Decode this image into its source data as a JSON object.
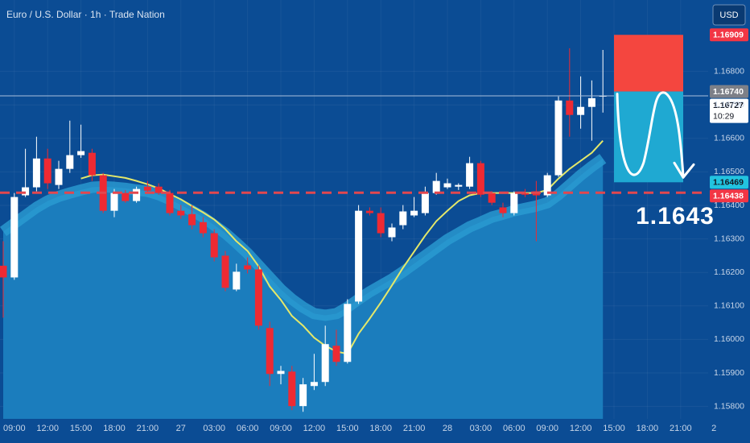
{
  "chart_data": {
    "type": "candlestick",
    "title": "Euro / U.S. Dollar · 1h · Trade Nation",
    "currency": "USD",
    "categories": [
      null,
      "09:00",
      null,
      null,
      "12:00",
      null,
      null,
      "15:00",
      null,
      null,
      "18:00",
      null,
      null,
      "21:00",
      null,
      null,
      "27",
      null,
      null,
      "03:00",
      null,
      null,
      "06:00",
      null,
      null,
      "09:00",
      null,
      null,
      "12:00",
      null,
      null,
      "15:00",
      null,
      null,
      "18:00",
      null,
      null,
      "21:00",
      null,
      null,
      "28",
      null,
      null,
      "03:00",
      null,
      null,
      "06:00",
      null,
      null,
      "09:00",
      null,
      null,
      "12:00",
      null,
      null,
      "15:00",
      null,
      null,
      "18:00",
      null,
      null,
      "21:00",
      null,
      null,
      "2"
    ],
    "open": [
      1.1622,
      1.16185,
      1.1643,
      1.16454,
      1.1654,
      1.16461,
      1.16509,
      1.1655,
      1.16557,
      1.1649,
      1.16384,
      1.16437,
      1.16413,
      1.16456,
      1.16456,
      1.16437,
      1.16384,
      1.16374,
      1.1635,
      1.16317,
      1.1625,
      1.16149,
      1.16221,
      1.16209,
      1.16034,
      1.15897,
      1.15904,
      1.15801,
      1.15861,
      1.15873,
      1.15981,
      1.15933,
      1.16113,
      1.16384,
      1.16377,
      1.16305,
      1.16341,
      1.1637,
      1.16377,
      1.16437,
      1.16454,
      1.16456,
      1.16456,
      1.16526,
      1.16437,
      1.16394,
      1.16377,
      1.16437,
      1.16442,
      1.1643,
      1.1649,
      1.16713,
      1.1667,
      1.16694,
      1.16725,
      null,
      null,
      null,
      null,
      null,
      null,
      null,
      null,
      null,
      null
    ],
    "high": [
      1.16293,
      1.16437,
      1.16569,
      1.16605,
      1.16569,
      1.16533,
      1.16653,
      1.16641,
      1.16569,
      1.16497,
      1.16449,
      1.16446,
      1.16456,
      1.16473,
      1.16466,
      1.16446,
      1.16401,
      1.16401,
      1.16365,
      1.16329,
      1.16264,
      1.16226,
      1.16245,
      1.16221,
      1.16053,
      1.15921,
      1.15921,
      1.15885,
      1.15957,
      1.16041,
      1.16029,
      1.1612,
      1.16401,
      1.16394,
      1.16394,
      1.16346,
      1.16401,
      1.16425,
      1.16456,
      1.16497,
      1.1648,
      1.16466,
      1.16545,
      1.16533,
      1.16442,
      1.16408,
      1.16442,
      1.16449,
      1.16473,
      1.16497,
      1.16725,
      1.16869,
      1.16785,
      1.16773,
      1.16864,
      null,
      null,
      null,
      null,
      null,
      null,
      null,
      null,
      null,
      null
    ],
    "low": [
      1.16065,
      1.16178,
      1.16425,
      1.16442,
      1.16449,
      1.16449,
      1.16497,
      1.16542,
      1.16473,
      1.16377,
      1.16365,
      1.16408,
      1.16408,
      1.16437,
      1.16432,
      1.1637,
      1.1636,
      1.16329,
      1.16305,
      1.16233,
      1.16144,
      1.16144,
      1.16197,
      1.16029,
      1.15861,
      1.15866,
      1.15789,
      1.15784,
      1.15849,
      1.15861,
      1.15921,
      1.15928,
      1.16106,
      1.1637,
      1.16305,
      1.16293,
      1.16329,
      1.16365,
      1.1637,
      1.16432,
      1.16449,
      1.16446,
      1.16449,
      1.16425,
      1.16401,
      1.16365,
      1.1637,
      1.16425,
      1.16293,
      1.16425,
      1.16485,
      1.16605,
      1.16629,
      1.16593,
      1.16677,
      null,
      null,
      null,
      null,
      null,
      null,
      null,
      null,
      null,
      null
    ],
    "close": [
      1.16185,
      1.16425,
      1.16454,
      1.1654,
      1.16466,
      1.16509,
      1.1655,
      1.16562,
      1.1649,
      1.16384,
      1.16437,
      1.16413,
      1.16449,
      1.16444,
      1.16437,
      1.16377,
      1.1637,
      1.16341,
      1.16317,
      1.16245,
      1.16154,
      1.16202,
      1.16209,
      1.16041,
      1.15897,
      1.15906,
      1.15801,
      1.15866,
      1.15873,
      1.15986,
      1.15933,
      1.16106,
      1.16384,
      1.16377,
      1.16317,
      1.16334,
      1.16382,
      1.16384,
      1.16437,
      1.16473,
      1.16466,
      1.16461,
      1.16526,
      1.16432,
      1.16408,
      1.16377,
      1.16437,
      1.16432,
      1.1643,
      1.1649,
      1.16713,
      1.1667,
      1.16694,
      1.1672,
      1.16727,
      null,
      null,
      null,
      null,
      null,
      null,
      null,
      null,
      null,
      null
    ],
    "up_color": "#ffffff",
    "down_color": "#ee2a33",
    "overlays": [
      {
        "type": "area",
        "color": "#1b7dbd",
        "edge_color": "#2a9cd2",
        "values": [
          1.16322,
          1.16346,
          1.1637,
          1.16394,
          1.16413,
          1.16427,
          1.16437,
          1.16446,
          1.16454,
          1.16456,
          1.16454,
          1.16451,
          1.16446,
          1.16442,
          1.16432,
          1.16418,
          1.16401,
          1.16384,
          1.16365,
          1.16341,
          1.16317,
          1.16288,
          1.16257,
          1.16221,
          1.16185,
          1.16149,
          1.1612,
          1.16096,
          1.16077,
          1.16072,
          1.16077,
          1.16096,
          1.1612,
          1.16142,
          1.16161,
          1.1618,
          1.16202,
          1.16226,
          1.1625,
          1.16274,
          1.16298,
          1.16317,
          1.16336,
          1.1635,
          1.16365,
          1.16374,
          1.16384,
          1.16391,
          1.16398,
          1.16408,
          1.16432,
          1.16461,
          1.1649,
          1.16516,
          1.1654,
          null,
          null,
          null,
          null,
          null,
          null,
          null,
          null,
          null,
          null
        ]
      },
      {
        "type": "line",
        "color": "#e4e86a",
        "values": [
          null,
          null,
          null,
          null,
          null,
          null,
          null,
          1.1648,
          1.1649,
          1.16492,
          1.16487,
          1.16482,
          1.16473,
          1.16463,
          1.16451,
          1.16434,
          1.16418,
          1.16398,
          1.16379,
          1.16358,
          1.16329,
          1.16293,
          1.16264,
          1.16218,
          1.16158,
          1.16118,
          1.1607,
          1.16041,
          1.16005,
          1.15981,
          1.15964,
          1.15957,
          1.16017,
          1.16062,
          1.1611,
          1.16161,
          1.16214,
          1.16262,
          1.1631,
          1.16353,
          1.16384,
          1.16413,
          1.1643,
          1.16437,
          1.16437,
          1.16437,
          1.16437,
          1.16437,
          1.16437,
          1.16446,
          1.1648,
          1.16509,
          1.16533,
          1.16557,
          1.16593,
          null,
          null,
          null,
          null,
          null,
          null,
          null,
          null,
          null,
          null
        ]
      }
    ],
    "ylim": [
      1.15763,
      1.17013
    ],
    "yticks": [
      {
        "value": 1.158,
        "label": "1.15800"
      },
      {
        "value": 1.159,
        "label": "1.15900"
      },
      {
        "value": 1.16,
        "label": "1.16000"
      },
      {
        "value": 1.161,
        "label": "1.16100"
      },
      {
        "value": 1.162,
        "label": "1.16200"
      },
      {
        "value": 1.163,
        "label": "1.16300"
      },
      {
        "value": 1.164,
        "label": "1.16400"
      },
      {
        "value": 1.165,
        "label": "1.16500"
      },
      {
        "value": 1.166,
        "label": "1.16600"
      },
      {
        "value": 1.167,
        "label": "1.16700"
      },
      {
        "value": 1.168,
        "label": "1.16800"
      }
    ],
    "grid": true,
    "lines": [
      {
        "value": 1.16727,
        "style": "solid",
        "color": "#a9c0dc"
      },
      {
        "value": 1.16438,
        "style": "dashed",
        "color": "#e2474f"
      }
    ],
    "position": {
      "stop": 1.16909,
      "entry": 1.1674,
      "target": 1.16469,
      "stop_color": "#f4463f",
      "target_color": "#1fa9d2"
    },
    "price_tags": [
      {
        "value": 1.16909,
        "label": "1.16909",
        "color": "#f23645",
        "text_color": "#ffffff"
      },
      {
        "value": 1.1674,
        "label": "1.16740",
        "color": "#7d8088",
        "text_color": "#ffffff"
      },
      {
        "value": 1.16727,
        "label": "1.16727",
        "countdown": "10:29",
        "color": "#ffffff",
        "text_color": "#131722"
      },
      {
        "value": 1.16469,
        "label": "1.16469",
        "color": "#22c4e0",
        "text_color": "#131722"
      },
      {
        "value": 1.16438,
        "label": "1.16438",
        "color": "#f23645",
        "text_color": "#ffffff"
      }
    ],
    "annotation": "1.1643"
  }
}
